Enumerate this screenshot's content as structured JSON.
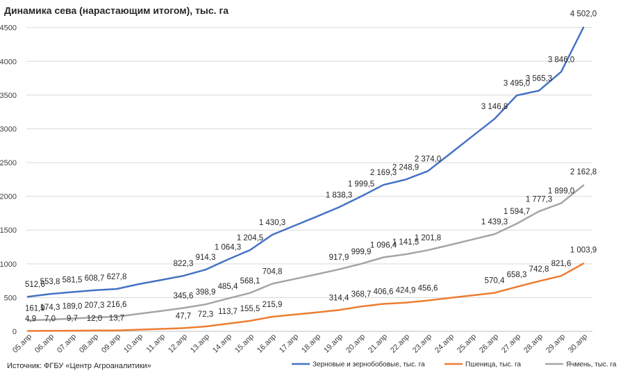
{
  "chart_data": {
    "type": "line",
    "title": "Динамика сева (нарастающим итогом), тыс. га",
    "source": "Источник: ФГБУ «Центр Агроаналитики»",
    "ylim": [
      0,
      4600
    ],
    "y_ticks": [
      0,
      500,
      1000,
      1500,
      2000,
      2500,
      3000,
      3500,
      4000,
      4500
    ],
    "y_tick_labels": [
      "0",
      "500",
      "1000",
      "1500",
      "2000",
      "2500",
      "3000",
      "3500",
      "4000",
      "4500"
    ],
    "grid": "horizontal",
    "legend_position": "bottom",
    "categories": [
      "05.апр",
      "06.апр",
      "07.апр",
      "08.апр",
      "09.апр",
      "10.апр",
      "11.апр",
      "12.апр",
      "13.апр",
      "14.апр",
      "15.апр",
      "16.апр",
      "17.апр",
      "18.апр",
      "19.апр",
      "20.апр",
      "21.апр",
      "22.апр",
      "23.апр",
      "24.апр",
      "25.апр",
      "26.апр",
      "27.апр",
      "28.апр",
      "29.апр",
      "30.апр"
    ],
    "series": [
      {
        "name": "Зерновые и зернобобовые, тыс. га",
        "color": "#4472c4",
        "values": [
          512.6,
          553.8,
          581.5,
          608.7,
          627.8,
          700,
          760,
          822.3,
          914.3,
          1064.3,
          1204.5,
          1430.3,
          1565,
          1700,
          1838.3,
          1999.5,
          2169.3,
          2248.9,
          2374.0,
          2630,
          2890,
          3146.8,
          3495.0,
          3565.3,
          3846.0,
          4502.0
        ],
        "labels": [
          "512,6",
          "553,8",
          "581,5",
          "608,7",
          "627,8",
          "",
          "",
          "822,3",
          "914,3",
          "1 064,3",
          "1 204,5",
          "1 430,3",
          "",
          "",
          "1 838,3",
          "1 999,5",
          "2 169,3",
          "2 248,9",
          "2 374,0",
          "",
          "",
          "3 146,8",
          "3 495,0",
          "3 565,3",
          "3 846,0",
          "4 502,0"
        ]
      },
      {
        "name": "Пшеница, тыс. га",
        "color": "#ed7d31",
        "values": [
          4.9,
          7.0,
          9.7,
          12.0,
          13.7,
          25,
          36,
          47.7,
          72.3,
          113.7,
          155.5,
          215.9,
          248,
          281,
          314.4,
          368.7,
          406.6,
          424.9,
          456.6,
          495,
          532,
          570.4,
          658.3,
          742.8,
          821.6,
          1003.9
        ],
        "labels": [
          "4,9",
          "7,0",
          "9,7",
          "12,0",
          "13,7",
          "",
          "",
          "47,7",
          "72,3",
          "113,7",
          "155,5",
          "215,9",
          "",
          "",
          "314,4",
          "368,7",
          "406,6",
          "424,9",
          "456,6",
          "",
          "",
          "570,4",
          "658,3",
          "742,8",
          "821,6",
          "1 003,9"
        ]
      },
      {
        "name": "Ячмень, тыс. га",
        "color": "#a5a5a5",
        "values": [
          161.9,
          174.3,
          189.0,
          207.3,
          216.6,
          260,
          300,
          345.6,
          398.9,
          485.4,
          568.1,
          704.8,
          775,
          845,
          917.9,
          999.9,
          1096.4,
          1141.5,
          1201.8,
          1280,
          1360,
          1439.3,
          1594.7,
          1777.3,
          1899.0,
          2162.8
        ],
        "labels": [
          "161,9",
          "174,3",
          "189,0",
          "207,3",
          "216,6",
          "",
          "",
          "345,6",
          "398,9",
          "485,4",
          "568,1",
          "704,8",
          "",
          "",
          "917,9",
          "999,9",
          "1 096,4",
          "1 141,5",
          "1 201,8",
          "",
          "",
          "1 439,3",
          "1 594,7",
          "1 777,3",
          "1 899,0",
          "2 162,8"
        ]
      }
    ]
  }
}
